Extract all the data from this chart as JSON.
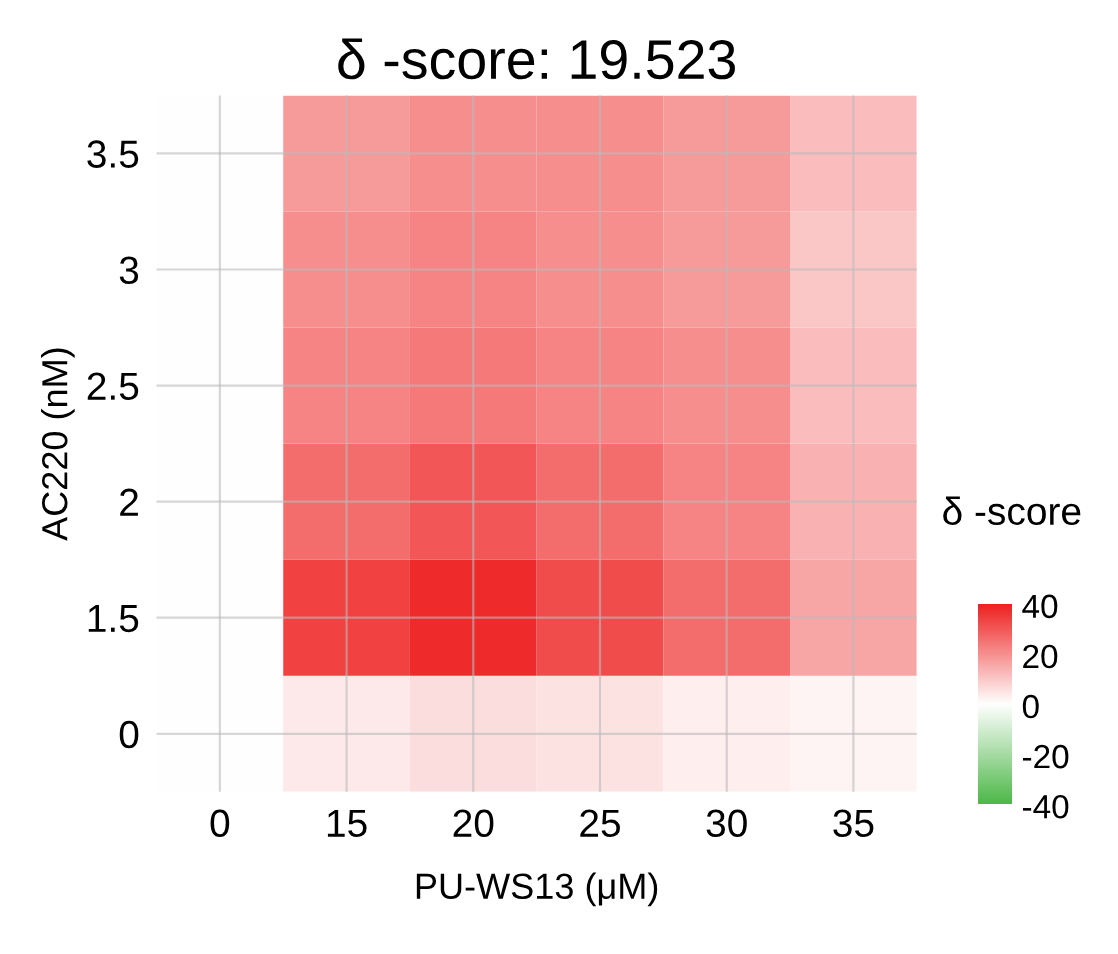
{
  "chart_data": {
    "type": "heatmap",
    "title": "δ -score: 19.523",
    "xlabel": "PU-WS13 (μM)",
    "ylabel": "AC220 (nM)",
    "clabel": "δ -score",
    "categories": [
      "0",
      "15",
      "20",
      "25",
      "30",
      "35"
    ],
    "y_categories": [
      "3.5",
      "3",
      "2.5",
      "2",
      "1.5",
      "0"
    ],
    "cells": [
      [
        0,
        18,
        20,
        20,
        18,
        12
      ],
      [
        0,
        20,
        22,
        20,
        18,
        10
      ],
      [
        0,
        22,
        24,
        22,
        20,
        12
      ],
      [
        0,
        26,
        30,
        26,
        22,
        14
      ],
      [
        0,
        34,
        38,
        32,
        26,
        16
      ],
      [
        0,
        4,
        6,
        5,
        3,
        2
      ]
    ],
    "colors": [
      "#4db848",
      "#ffffff",
      "#ee2020"
    ],
    "clim": [
      -40,
      40
    ],
    "cticks": [
      -40,
      -20,
      0,
      20,
      40
    ],
    "grid": true
  }
}
